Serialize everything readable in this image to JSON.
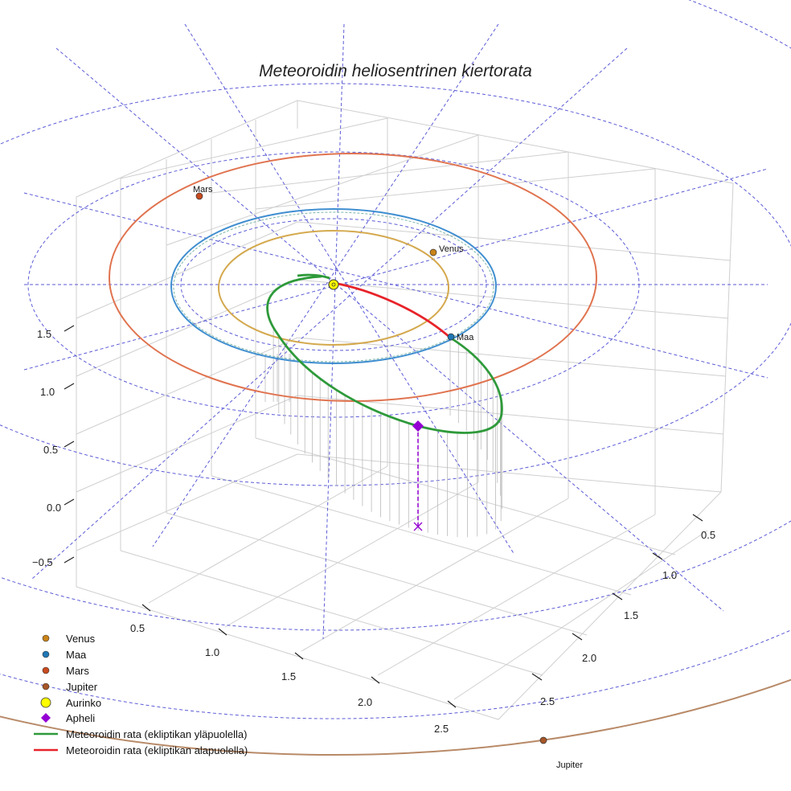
{
  "chart_data": {
    "type": "line",
    "title": "Meteoroidin heliosentrinen kiertorata",
    "axes": {
      "x_ticks": [
        "0.5",
        "1.0",
        "1.5",
        "2.0",
        "2.5"
      ],
      "y_ticks": [
        "0.5",
        "1.0",
        "1.5",
        "2.0",
        "2.5"
      ],
      "z_ticks": [
        "−0.5",
        "0.0",
        "0.5",
        "1.0",
        "1.5"
      ]
    },
    "planets": [
      {
        "name": "Venus",
        "label": "Venus",
        "orbit_radius_au": 0.72,
        "color": "#d4a94e",
        "marker_color": "#c98319"
      },
      {
        "name": "Maa",
        "label": "Maa",
        "orbit_radius_au": 1.0,
        "color": "#3f8ed0",
        "marker_color": "#1f77b4"
      },
      {
        "name": "Mars",
        "label": "Mars",
        "orbit_radius_au": 1.52,
        "color": "#e0734f",
        "marker_color": "#c84a1e"
      },
      {
        "name": "Jupiter",
        "label": "Jupiter",
        "orbit_radius_au": 5.2,
        "color": "#b88a68",
        "marker_color": "#a65628"
      }
    ],
    "sun": {
      "name": "Aurinko",
      "color": "#ffff00"
    },
    "aphelion": {
      "name": "Apheli",
      "color": "#9400d3"
    },
    "meteoroid_orbit": {
      "above_ecliptic": {
        "name": "Meteoroidin rata (ekliptikan yläpuolella)",
        "color": "#2e9a3a"
      },
      "below_ecliptic": {
        "name": "Meteoroidin rata (ekliptikan alapuolella)",
        "color": "#e8232a"
      }
    },
    "legend": [
      {
        "label": "Venus",
        "symbol": "dot",
        "color": "#c98319"
      },
      {
        "label": "Maa",
        "symbol": "dot",
        "color": "#1f77b4"
      },
      {
        "label": "Mars",
        "symbol": "dot",
        "color": "#c84a1e"
      },
      {
        "label": "Jupiter",
        "symbol": "dot",
        "color": "#a65628"
      },
      {
        "label": "Aurinko",
        "symbol": "sun",
        "color": "#ffff00"
      },
      {
        "label": "Apheli",
        "symbol": "diamond",
        "color": "#9400d3"
      },
      {
        "label": "Meteoroidin rata (ekliptikan yläpuolella)",
        "symbol": "line",
        "color": "#2e9a3a"
      },
      {
        "label": "Meteoroidin rata (ekliptikan alapuolella)",
        "symbol": "line",
        "color": "#e8232a"
      }
    ],
    "legend_placement": "bottom-left",
    "grid": true
  }
}
